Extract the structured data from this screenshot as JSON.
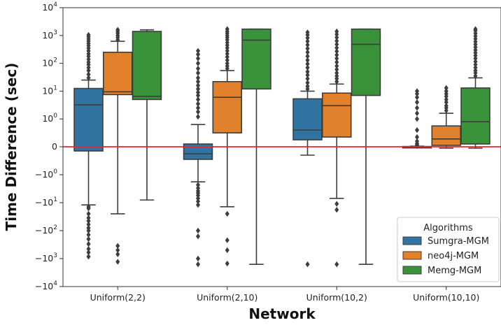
{
  "chart_data": {
    "type": "box",
    "xlabel": "Network",
    "ylabel": "Time Difference (sec)",
    "yscale": "symlog",
    "ylim": [
      -10000,
      10000
    ],
    "categories": [
      "Uniform(2,2)",
      "Uniform(2,10)",
      "Uniform(10,2)",
      "Uniform(10,10)"
    ],
    "y_ticks": [
      {
        "value": 10000,
        "base": "10",
        "exp": "4"
      },
      {
        "value": 1000,
        "base": "10",
        "exp": "3"
      },
      {
        "value": 100,
        "base": "10",
        "exp": "2"
      },
      {
        "value": 10,
        "base": "10",
        "exp": "1"
      },
      {
        "value": 1,
        "base": "10",
        "exp": "0"
      },
      {
        "value": 0,
        "base": "0",
        "exp": ""
      },
      {
        "value": -1,
        "base": "−10",
        "exp": "0"
      },
      {
        "value": -10,
        "base": "−10",
        "exp": "1"
      },
      {
        "value": -100,
        "base": "−10",
        "exp": "2"
      },
      {
        "value": -1000,
        "base": "−10",
        "exp": "3"
      },
      {
        "value": -10000,
        "base": "−10",
        "exp": "4"
      }
    ],
    "reference_line": {
      "y": 0,
      "color": "#e8262a"
    },
    "legend": {
      "title": "Algorithms",
      "position": "lower-right"
    },
    "series": [
      {
        "name": "Sumgra-MGM",
        "color": "#3274a1",
        "boxes": [
          {
            "whislo": -12,
            "q1": -0.15,
            "med": 3.2,
            "q3": 12.5,
            "whishi": 25,
            "fliers_high": [
              30,
              40,
              55,
              70,
              90,
              110,
              140,
              180,
              220,
              280,
              350,
              430,
              520,
              630,
              750,
              900,
              1050
            ],
            "fliers_low": [
              -14,
              -16,
              -25,
              -35,
              -45,
              -60,
              -80,
              -100,
              -140,
              -200,
              -300,
              -450,
              -600,
              -850
            ]
          },
          {
            "whislo": -1.8,
            "q1": -0.45,
            "med": -0.25,
            "q3": 0.1,
            "whishi": 0.8,
            "fliers_high": [
              1.2,
              1.8,
              2.5,
              3.5,
              5,
              7,
              9,
              12,
              16,
              22,
              30,
              45,
              65,
              100,
              150,
              210,
              280
            ],
            "fliers_low": [
              -2.3,
              -3,
              -3.8,
              -4.5,
              -5.5,
              -7,
              -9,
              -12,
              -100,
              -160,
              -1000,
              -1600
            ]
          },
          {
            "whislo": -0.3,
            "q1": 0.25,
            "med": 0.6,
            "q3": 5.3,
            "whishi": 10,
            "fliers_high": [
              12,
              15,
              20,
              28,
              38,
              50,
              70,
              95,
              130,
              180,
              250,
              340,
              460,
              620,
              820,
              1050,
              1300
            ],
            "fliers_low": [
              -1600
            ]
          },
          {
            "whislo": -0.01,
            "q1": -0.005,
            "med": 0.0,
            "q3": 0.01,
            "whishi": 0.02,
            "fliers_high": [
              0.03,
              0.05,
              0.08,
              0.12,
              0.2,
              0.35,
              0.6,
              1,
              1.6,
              2.5,
              4,
              6,
              8,
              10
            ],
            "fliers_low": []
          }
        ]
      },
      {
        "name": "neo4j-MGM",
        "color": "#e1812c",
        "boxes": [
          {
            "whislo": -25,
            "q1": 7.5,
            "med": 9.5,
            "q3": 250,
            "whishi": 620,
            "fliers_high": [
              700,
              850,
              1000,
              1200,
              1400,
              1600
            ],
            "fliers_low": [
              -350,
              -500,
              -700,
              -1300
            ]
          },
          {
            "whislo": -14,
            "q1": 0.5,
            "med": 6,
            "q3": 22,
            "whishi": 55,
            "fliers_high": [
              65,
              80,
              100,
              130,
              170,
              220,
              280,
              360,
              450,
              560,
              700,
              850,
              1000,
              1200,
              1400,
              1700
            ],
            "fliers_low": [
              -25,
              -220,
              -500,
              -1500
            ]
          },
          {
            "whislo": -7,
            "q1": 0.35,
            "med": 3,
            "q3": 8.5,
            "whishi": 18,
            "fliers_high": [
              22,
              28,
              35,
              45,
              60,
              80,
              110,
              150,
              200,
              270,
              360,
              480,
              640,
              850,
              1100,
              1400
            ],
            "fliers_low": [
              -11,
              -18,
              -1600
            ]
          },
          {
            "whislo": -0.05,
            "q1": 0.05,
            "med": 0.28,
            "q3": 0.75,
            "whishi": 1.6,
            "fliers_high": [
              2,
              2.5,
              3,
              4,
              5,
              6.5,
              8,
              10,
              13
            ],
            "fliers_low": []
          }
        ]
      },
      {
        "name": "Memg-MGM",
        "color": "#3a923a",
        "boxes": [
          {
            "whislo": -8,
            "q1": 5,
            "med": 6.5,
            "q3": 1400,
            "whishi": 1600,
            "fliers_high": [],
            "fliers_low": []
          },
          {
            "whislo": -1600,
            "q1": 12,
            "med": 680,
            "q3": 1700,
            "whishi": 1700,
            "fliers_high": [],
            "fliers_low": []
          },
          {
            "whislo": -1600,
            "q1": 7,
            "med": 480,
            "q3": 1700,
            "whishi": 1700,
            "fliers_high": [],
            "fliers_low": []
          },
          {
            "whislo": -0.05,
            "q1": 0.1,
            "med": 0.9,
            "q3": 13,
            "whishi": 30,
            "fliers_high": [
              35,
              45,
              55,
              70,
              90,
              115,
              150,
              190,
              240,
              300,
              380,
              480,
              600,
              760,
              950,
              1200,
              1500,
              1700
            ],
            "fliers_low": []
          }
        ]
      }
    ]
  }
}
